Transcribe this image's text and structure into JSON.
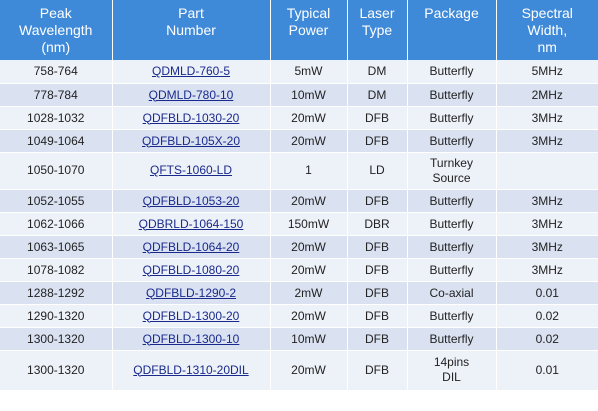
{
  "columns": [
    [
      "Peak",
      "Wavelength",
      "(nm)"
    ],
    [
      "Part",
      "Number"
    ],
    [
      "Typical",
      "Power"
    ],
    [
      "Laser",
      "Type"
    ],
    [
      "Package"
    ],
    [
      "Spectral",
      "Width,",
      "nm"
    ]
  ],
  "rows": [
    {
      "wavelength": "758-764",
      "part": "QDMLD-760-5",
      "power": "5mW",
      "type": "DM",
      "package": [
        "Butterfly"
      ],
      "width": "5MHz"
    },
    {
      "wavelength": "778-784",
      "part": "QDMLD-780-10",
      "power": "10mW",
      "type": "DM",
      "package": [
        "Butterfly"
      ],
      "width": "2MHz"
    },
    {
      "wavelength": "1028-1032",
      "part": "QDFBLD-1030-20",
      "power": "20mW",
      "type": "DFB",
      "package": [
        "Butterfly"
      ],
      "width": "3MHz"
    },
    {
      "wavelength": "1049-1064",
      "part": "QDFBLD-105X-20",
      "power": "20mW",
      "type": "DFB",
      "package": [
        "Butterfly"
      ],
      "width": "3MHz"
    },
    {
      "wavelength": "1050-1070",
      "part": "QFTS-1060-LD",
      "power": "1",
      "type": "LD",
      "package": [
        "Turnkey",
        "Source"
      ],
      "width": ""
    },
    {
      "wavelength": "1052-1055",
      "part": "QDFBLD-1053-20",
      "power": "20mW",
      "type": "DFB",
      "package": [
        "Butterfly"
      ],
      "width": "3MHz"
    },
    {
      "wavelength": "1062-1066",
      "part": "QDBRLD-1064-150",
      "power": "150mW",
      "type": "DBR",
      "package": [
        "Butterfly"
      ],
      "width": "3MHz"
    },
    {
      "wavelength": "1063-1065",
      "part": "QDFBLD-1064-20",
      "power": "20mW",
      "type": "DFB",
      "package": [
        "Butterfly"
      ],
      "width": "3MHz"
    },
    {
      "wavelength": "1078-1082",
      "part": "QDFBLD-1080-20",
      "power": "20mW",
      "type": "DFB",
      "package": [
        "Butterfly"
      ],
      "width": "3MHz"
    },
    {
      "wavelength": "1288-1292",
      "part": "QDFBLD-1290-2",
      "power": "2mW",
      "type": "DFB",
      "package": [
        "Co-axial"
      ],
      "width": "0.01"
    },
    {
      "wavelength": "1290-1320",
      "part": "QDFBLD-1300-20",
      "power": "20mW",
      "type": "DFB",
      "package": [
        "Butterfly"
      ],
      "width": "0.02"
    },
    {
      "wavelength": "1300-1320",
      "part": "QDFBLD-1300-10",
      "power": "10mW",
      "type": "DFB",
      "package": [
        "Butterfly"
      ],
      "width": "0.02"
    },
    {
      "wavelength": "1300-1320",
      "part": "QDFBLD-1310-20DIL",
      "power": "20mW",
      "type": "DFB",
      "package": [
        "14pins",
        "DIL"
      ],
      "width": "0.01"
    }
  ]
}
